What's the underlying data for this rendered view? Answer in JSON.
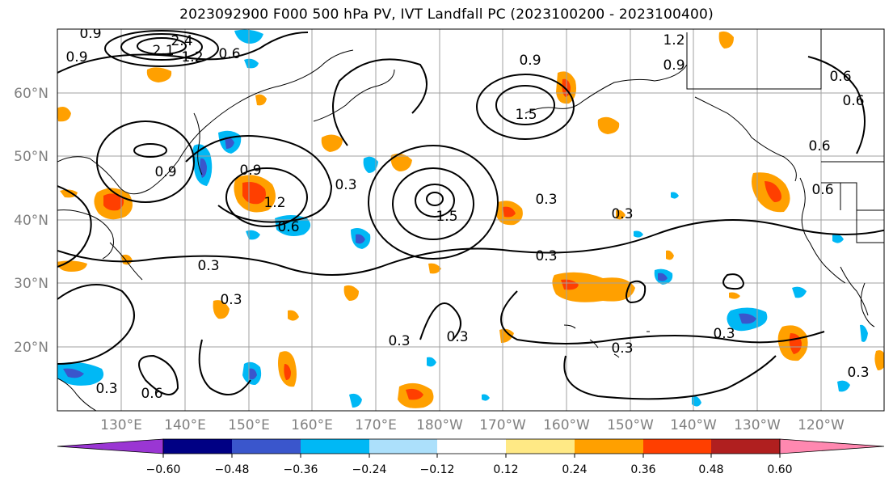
{
  "title": "2023092900 F000 500 hPa PV, IVT Landfall PC (2023100200 - 2023100400)",
  "lat_labels": [
    "60°N",
    "50°N",
    "40°N",
    "30°N",
    "20°N"
  ],
  "lon_labels": [
    "130°E",
    "140°E",
    "150°E",
    "160°E",
    "170°E",
    "180°W",
    "170°W",
    "160°W",
    "150°W",
    "140°W",
    "130°W",
    "120°W"
  ],
  "colorbar": {
    "ticks": [
      "−0.60",
      "−0.48",
      "−0.36",
      "−0.24",
      "−0.12",
      "0.12",
      "0.24",
      "0.36",
      "0.48",
      "0.60"
    ],
    "colors": [
      "#9a36d3",
      "#000084",
      "#3a56cc",
      "#00b8f5",
      "#ace0fb",
      "#ffffff",
      "#ffe985",
      "#ffa000",
      "#ff3f00",
      "#b01f1f",
      "#ff88b0"
    ]
  },
  "contour_labels": [
    "0.9",
    "2.4",
    "2.1",
    "1.2",
    "0.9",
    "0.6",
    "1.2",
    "0.9",
    "1.5",
    "0.9",
    "0.6",
    "0.6",
    "0.6",
    "0.6",
    "0.9",
    "0.9",
    "1.2",
    "0.6",
    "0.3",
    "1.5",
    "0.3",
    "0.3",
    "0.3",
    "0.3",
    "0.3",
    "0.3",
    "0.3",
    "0.3",
    "0.3",
    "0.3",
    "0.6",
    "0.3"
  ],
  "colors": {
    "grid": "#a0a0a0",
    "contour": "#000000",
    "coast": "#000000",
    "tick_label": "#808080"
  }
}
